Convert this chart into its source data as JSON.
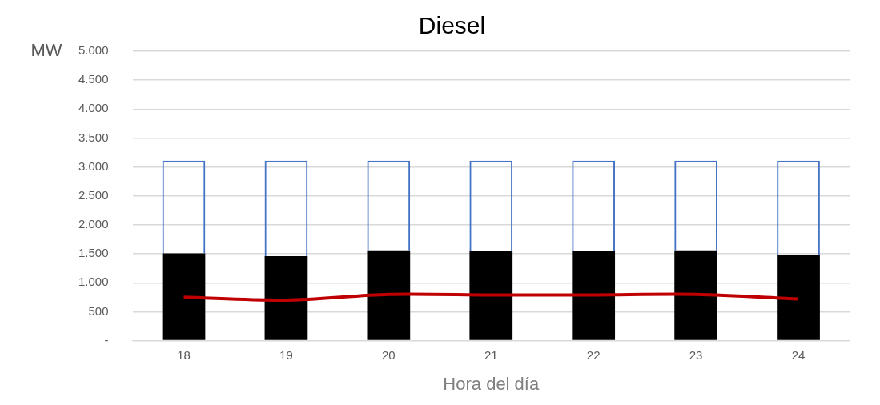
{
  "chart_data": {
    "type": "bar",
    "title": "Diesel",
    "xlabel": "Hora del día",
    "ylabel": "MW",
    "categories": [
      "18",
      "19",
      "20",
      "21",
      "22",
      "23",
      "24"
    ],
    "stacked": true,
    "series": [
      {
        "color": "#000000",
        "values": [
          1510,
          1460,
          1560,
          1550,
          1550,
          1560,
          1480
        ]
      },
      {
        "color": "#4472c4",
        "values": [
          1600,
          1650,
          1550,
          1560,
          1560,
          1550,
          1630
        ]
      },
      {
        "type": "line",
        "color": "#c00000",
        "values": [
          750,
          700,
          800,
          790,
          790,
          800,
          720
        ]
      }
    ],
    "ylim": [
      0,
      5000
    ],
    "yticks": [
      {
        "value": 0,
        "label": "-"
      },
      500,
      {
        "value": 1000,
        "label": "1.000"
      },
      {
        "value": 1500,
        "label": "1.500"
      },
      {
        "value": 2000,
        "label": "2.000"
      },
      {
        "value": 2500,
        "label": "2.500"
      },
      {
        "value": 3000,
        "label": "3.000"
      },
      {
        "value": 3500,
        "label": "3.500"
      },
      {
        "value": 4000,
        "label": "4.000"
      },
      {
        "value": 4500,
        "label": "4.500"
      },
      {
        "value": 5000,
        "label": "5.000"
      }
    ],
    "grid": "y",
    "legend": false
  }
}
